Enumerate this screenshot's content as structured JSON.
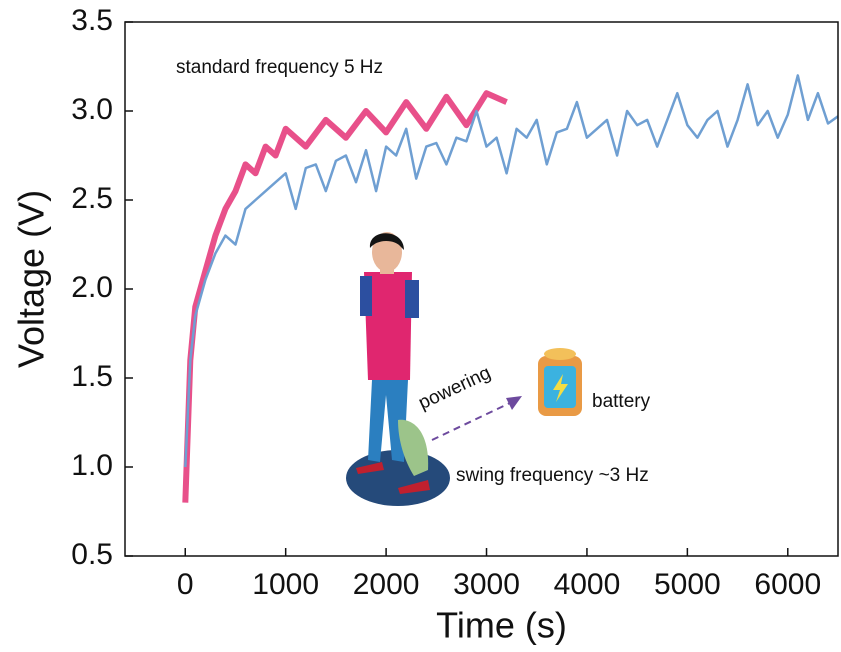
{
  "chart_data": {
    "type": "line",
    "xlabel": "Time (s)",
    "ylabel": "Voltage (V)",
    "annotations": [
      "standard frequency 5 Hz",
      "powering",
      "battery",
      "swing frequency  ~3 Hz"
    ],
    "xlim": [
      -600,
      6500
    ],
    "ylim": [
      0.5,
      3.5
    ],
    "xticks": [
      0,
      1000,
      2000,
      3000,
      4000,
      5000,
      6000
    ],
    "yticks": [
      0.5,
      {
        "value": 1,
        "label": "1.0"
      },
      1.5,
      {
        "value": 2,
        "label": "2.0"
      },
      2.5,
      {
        "value": 3,
        "label": "3.0"
      },
      3.5
    ],
    "series": [
      {
        "color": "#e8508a",
        "x": [
          0,
          50,
          100,
          200,
          300,
          400,
          500,
          600,
          700,
          800,
          900,
          1000,
          1200,
          1400,
          1600,
          1800,
          2000,
          2200,
          2400,
          2600,
          2800,
          3000,
          3200
        ],
        "values": [
          0.8,
          1.6,
          1.9,
          2.1,
          2.3,
          2.45,
          2.55,
          2.7,
          2.65,
          2.8,
          2.75,
          2.9,
          2.8,
          2.95,
          2.85,
          3.0,
          2.88,
          3.05,
          2.9,
          3.08,
          2.92,
          3.1,
          3.05
        ]
      },
      {
        "color": "#6f9fd2",
        "x": [
          0,
          50,
          100,
          200,
          300,
          400,
          500,
          600,
          700,
          800,
          900,
          1000,
          1100,
          1200,
          1300,
          1400,
          1500,
          1600,
          1700,
          1800,
          1900,
          2000,
          2100,
          2200,
          2300,
          2400,
          2500,
          2600,
          2700,
          2800,
          2900,
          3000,
          3100,
          3200,
          3300,
          3400,
          3500,
          3600,
          3700,
          3800,
          3900,
          4000,
          4100,
          4200,
          4300,
          4400,
          4500,
          4600,
          4700,
          4800,
          4900,
          5000,
          5100,
          5200,
          5300,
          5400,
          5500,
          5600,
          5700,
          5800,
          5900,
          6000,
          6100,
          6200,
          6300,
          6400,
          6500
        ],
        "values": [
          1.0,
          1.6,
          1.85,
          2.05,
          2.2,
          2.3,
          2.25,
          2.45,
          2.5,
          2.55,
          2.6,
          2.65,
          2.45,
          2.68,
          2.7,
          2.55,
          2.72,
          2.75,
          2.6,
          2.78,
          2.55,
          2.8,
          2.75,
          2.9,
          2.62,
          2.8,
          2.82,
          2.7,
          2.85,
          2.83,
          3.0,
          2.8,
          2.85,
          2.65,
          2.9,
          2.85,
          2.95,
          2.7,
          2.88,
          2.9,
          3.05,
          2.85,
          2.9,
          2.95,
          2.75,
          3.0,
          2.92,
          2.95,
          2.8,
          2.95,
          3.1,
          2.92,
          2.85,
          2.95,
          3.0,
          2.8,
          2.95,
          3.15,
          2.92,
          3.0,
          2.85,
          2.98,
          3.2,
          2.95,
          3.1,
          2.93,
          2.97
        ]
      }
    ]
  }
}
